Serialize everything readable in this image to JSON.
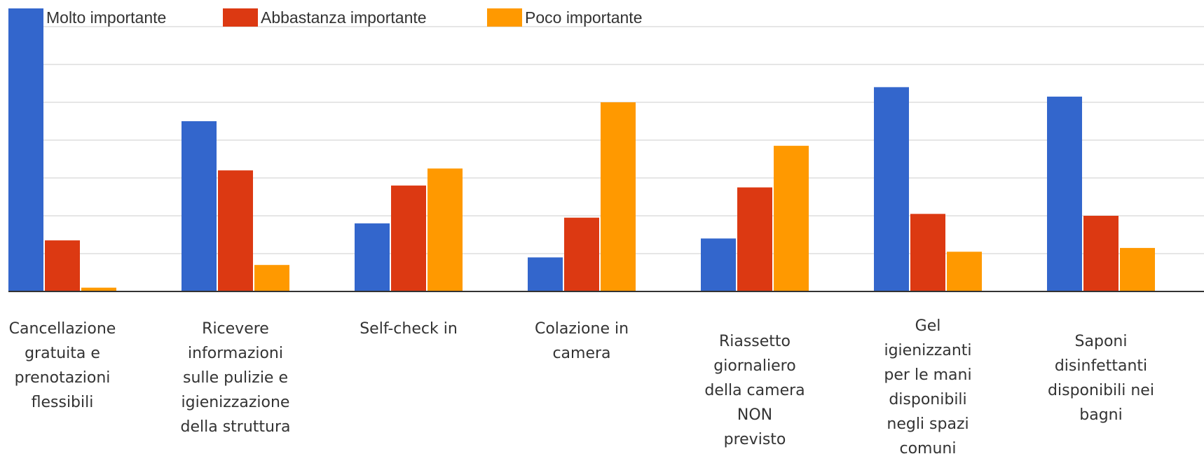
{
  "chart_data": {
    "type": "bar",
    "title": "",
    "xlabel": "",
    "ylabel": "",
    "ylim": [
      0,
      7
    ],
    "grid": true,
    "legend_position": "top-left",
    "categories": [
      "Cancellazione gratuita e prenotazioni flessibili",
      "Ricevere informazioni sulle pulizie e igienizzazione della struttura",
      "Self-check in",
      "Colazione in camera",
      "Riassetto giornaliero della camera NON previsto",
      "Gel igienizzanti per le mani disponibili negli spazi comuni",
      "Saponi disinfettanti disponibili nei bagni"
    ],
    "category_lines": [
      [
        "Cancellazione",
        "gratuita e",
        "prenotazioni",
        "flessibili"
      ],
      [
        "Ricevere",
        "informazioni",
        "sulle pulizie e",
        "igienizzazione",
        "della struttura"
      ],
      [
        "Self-check in"
      ],
      [
        "Colazione in",
        "camera"
      ],
      [
        "Riassetto",
        "giornaliero",
        "della camera",
        "NON",
        "previsto"
      ],
      [
        "Gel",
        "igienizzanti",
        "per le mani",
        "disponibili",
        "negli spazi",
        "comuni"
      ],
      [
        "Saponi",
        "disinfettanti",
        "disponibili nei",
        "bagni"
      ]
    ],
    "series": [
      {
        "name": "Molto importante",
        "color": "#3366cc",
        "values": [
          7.0,
          4.5,
          1.8,
          0.9,
          1.4,
          5.4,
          5.15
        ]
      },
      {
        "name": "Abbastanza importante",
        "color": "#dc3912",
        "values": [
          1.35,
          3.2,
          2.8,
          1.95,
          2.75,
          2.05,
          2.0
        ]
      },
      {
        "name": "Poco importante",
        "color": "#ff9900",
        "values": [
          0.1,
          0.7,
          3.25,
          5.0,
          3.85,
          1.05,
          1.15
        ]
      }
    ]
  }
}
